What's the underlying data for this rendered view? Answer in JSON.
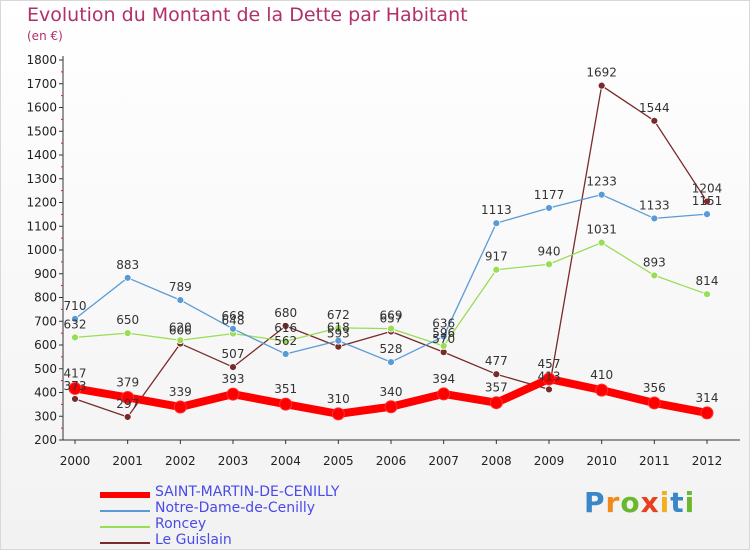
{
  "title": "Evolution du Montant de la Dette par Habitant",
  "unit_label": "(en €)",
  "brand": [
    "P",
    "r",
    "o",
    "x",
    "i",
    "t",
    "i"
  ],
  "colors": {
    "brand_letters": [
      "#3a86c8",
      "#f08a1a",
      "#6ab82e",
      "#e8401e",
      "#f0b020",
      "#3a86c8",
      "#6ab82e"
    ],
    "title": "#b0306a",
    "axis": "#333333",
    "grid_tick": "#d02020"
  },
  "chart_data": {
    "type": "line",
    "title": "Evolution du Montant de la Dette par Habitant",
    "ylabel": "(en €)",
    "x": [
      "2000",
      "2001",
      "2002",
      "2003",
      "2004",
      "2005",
      "2006",
      "2007",
      "2008",
      "2009",
      "2010",
      "2011",
      "2012"
    ],
    "ylim": [
      200,
      1800
    ],
    "yticks": [
      200,
      300,
      400,
      500,
      600,
      700,
      800,
      900,
      1000,
      1100,
      1200,
      1300,
      1400,
      1500,
      1600,
      1700,
      1800
    ],
    "legend_position": "bottom-left",
    "series": [
      {
        "name": "SAINT-MARTIN-DE-CENILLY",
        "color": "#ff0000",
        "values": [
          417,
          379,
          339,
          393,
          351,
          310,
          340,
          394,
          357,
          457,
          410,
          356,
          314
        ]
      },
      {
        "name": "Notre-Dame-de-Cenilly",
        "color": "#5b9bd5",
        "values": [
          710,
          883,
          789,
          668,
          562,
          618,
          528,
          636,
          1113,
          1177,
          1233,
          1133,
          1151
        ]
      },
      {
        "name": "Roncey",
        "color": "#99dd55",
        "values": [
          632,
          650,
          620,
          648,
          616,
          672,
          669,
          596,
          917,
          940,
          1031,
          893,
          814
        ]
      },
      {
        "name": "Le Guislain",
        "color": "#7a2a2a",
        "values": [
          373,
          297,
          606,
          507,
          680,
          593,
          657,
          570,
          477,
          413,
          1692,
          1544,
          1204
        ]
      }
    ]
  }
}
